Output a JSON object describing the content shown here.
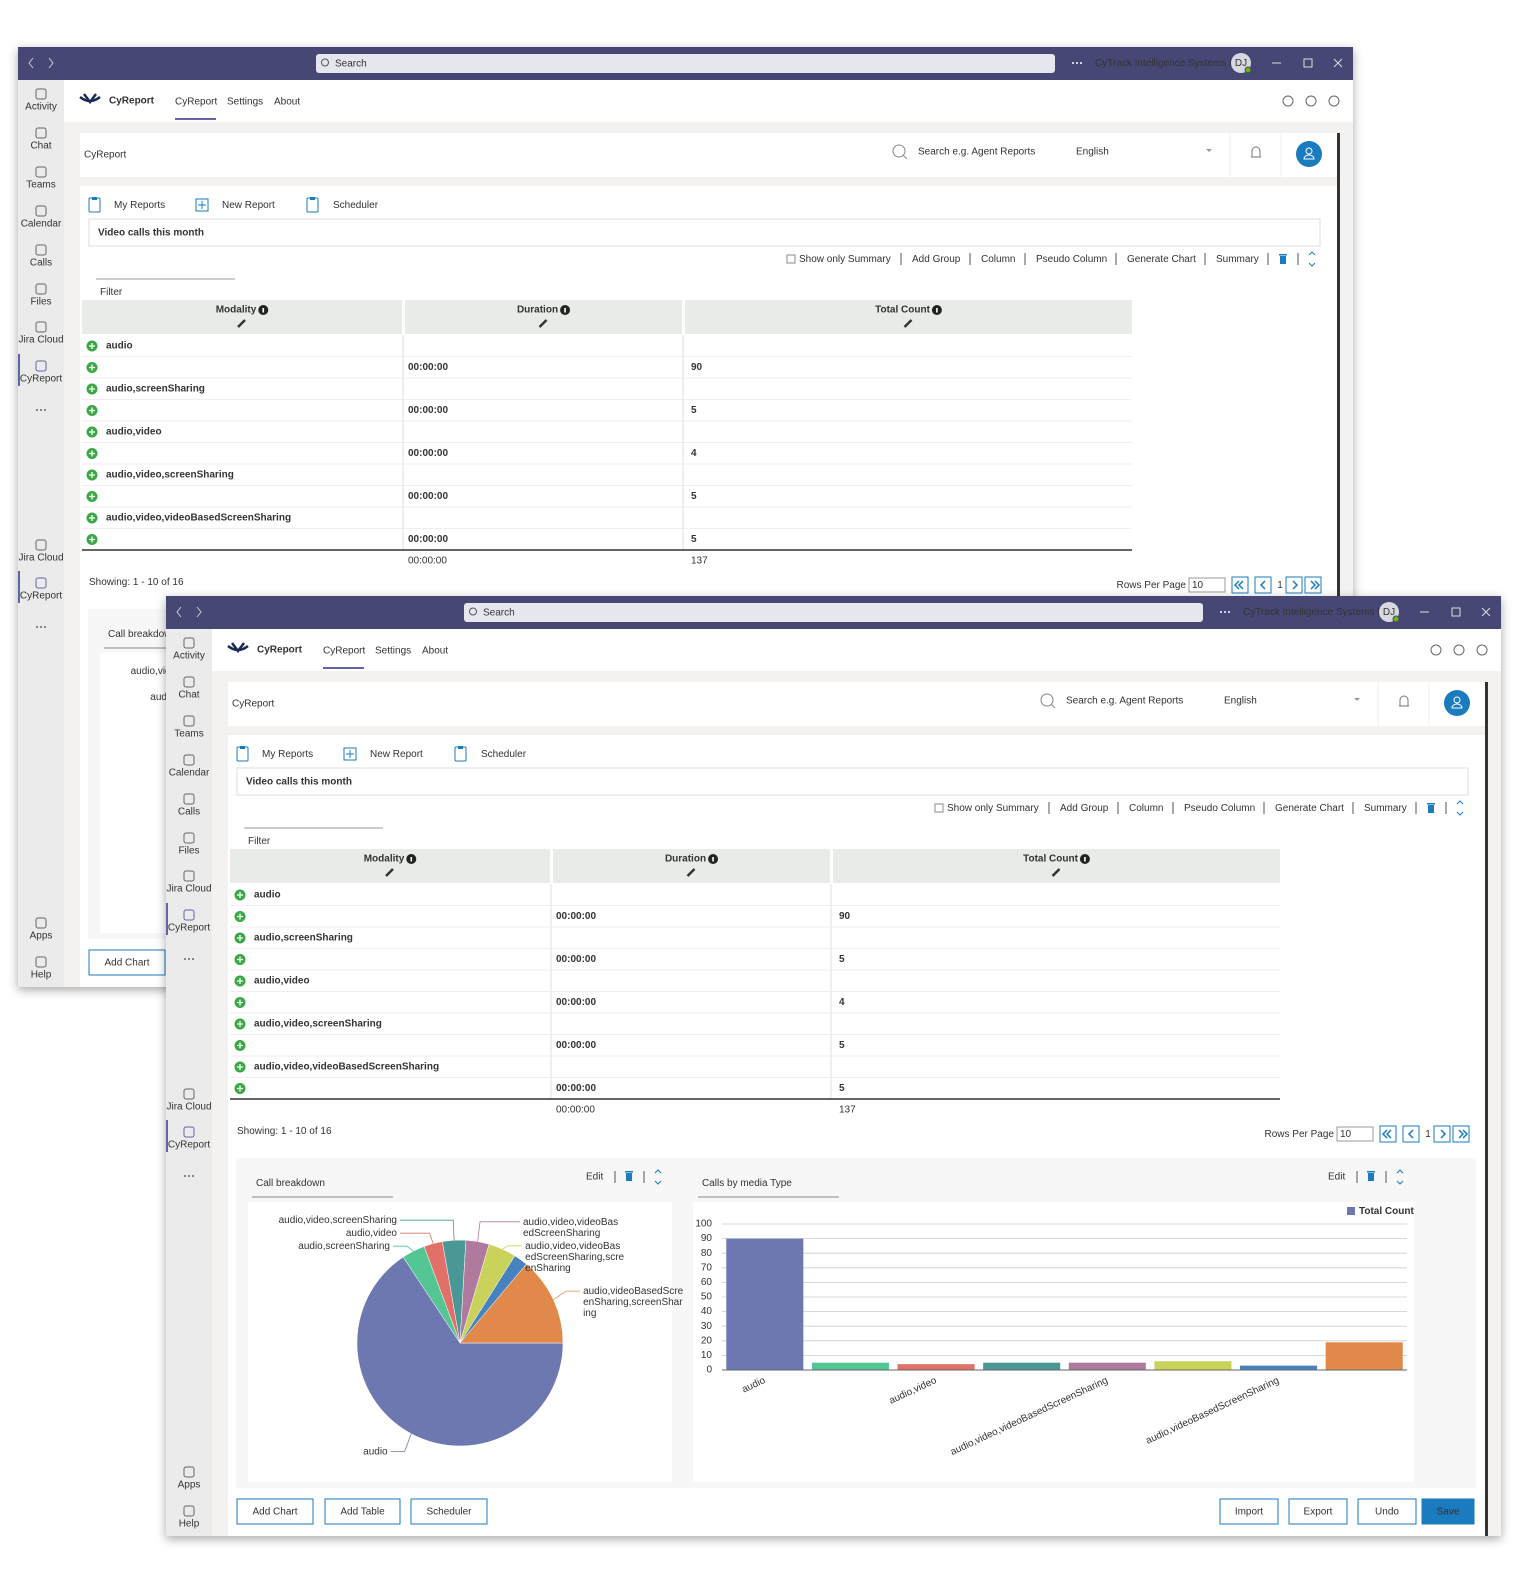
{
  "titlebar": {
    "search": "Search",
    "organization": "CyTrack Intelligence Systems Pty...",
    "avatar": "DJ"
  },
  "rail": {
    "items": [
      "Activity",
      "Chat",
      "Teams",
      "Calendar",
      "Calls",
      "Files",
      "Jira Cloud",
      "CyReport"
    ],
    "pinned": [
      "Jira Cloud",
      "CyReport"
    ],
    "bottom": [
      "Apps",
      "Help"
    ]
  },
  "app_bar": {
    "brand": "CyReport",
    "tabs": [
      "CyReport",
      "Settings",
      "About"
    ]
  },
  "header": {
    "title": "CyReport",
    "search_placeholder": "Search e.g. Agent Reports",
    "language": "English"
  },
  "nav": [
    "My Reports",
    "New Report",
    "Scheduler"
  ],
  "report": {
    "title": "Video calls this month",
    "toolbar": {
      "checkbox": "Show only Summary",
      "links": [
        "Add Group",
        "Column",
        "Pseudo Column",
        "Generate Chart",
        "Summary"
      ]
    },
    "filter": "Filter"
  },
  "table": {
    "columns": [
      "Modality",
      "Duration",
      "Total Count"
    ],
    "rows": [
      {
        "modality": "audio",
        "duration": "00:00:00",
        "total_count": 90
      },
      {
        "modality": "audio,screenSharing",
        "duration": "00:00:00",
        "total_count": 5
      },
      {
        "modality": "audio,video",
        "duration": "00:00:00",
        "total_count": 4
      },
      {
        "modality": "audio,video,screenSharing",
        "duration": "00:00:00",
        "total_count": 5
      },
      {
        "modality": "audio,video,videoBasedScreenSharing",
        "duration": "00:00:00",
        "total_count": 5
      }
    ],
    "footer": {
      "duration": "00:00:00",
      "total_count": 137
    }
  },
  "pagination": {
    "showing": "Showing: 1 - 10 of 16",
    "rows_per_page_label": "Rows Per Page",
    "rows_per_page": 10,
    "page": 1
  },
  "panels": [
    {
      "edit": "Edit"
    },
    {
      "edit": "Edit"
    }
  ],
  "buttons": {
    "left": [
      "Add Chart",
      "Add Table",
      "Scheduler"
    ],
    "right": [
      "Import",
      "Export",
      "Undo",
      "Save"
    ]
  },
  "chart_data": [
    {
      "type": "pie",
      "title": "Call breakdown",
      "categories": [
        "audio",
        "audio,screenSharing",
        "audio,video",
        "audio,video,screenSharing",
        "audio,video,videoBasedScreenSharing",
        "audio,video,videoBasedScreenSharing,screenSharing",
        null,
        "audio,videoBasedScreenSharing,screenSharing"
      ],
      "values": [
        90,
        5,
        4,
        5,
        5,
        6,
        3,
        19
      ],
      "colors": [
        "#6e78b0",
        "#53c693",
        "#e07068",
        "#4a9896",
        "#b07a9e",
        "#c9d25a",
        "#4582bf",
        "#e0894a"
      ]
    },
    {
      "type": "bar",
      "title": "Calls by media Type",
      "categories": [
        "audio",
        null,
        "audio,video",
        null,
        "audio,video,videoBasedScreenSharing",
        null,
        "audio,videoBasedScreenSharing",
        null
      ],
      "series": [
        {
          "name": "Total Count",
          "color": "#6e78b0",
          "values": [
            90,
            5,
            4,
            5,
            5,
            6,
            3,
            19
          ]
        }
      ],
      "colors": [
        "#6e78b0",
        "#53c693",
        "#e07068",
        "#4a9896",
        "#b07a9e",
        "#c9d25a",
        "#4582bf",
        "#e0894a"
      ],
      "ylim": [
        0,
        100
      ],
      "yticks": [
        0,
        10,
        20,
        30,
        40,
        50,
        60,
        70,
        80,
        90,
        100
      ],
      "grid": true,
      "legend": "top-right"
    }
  ]
}
